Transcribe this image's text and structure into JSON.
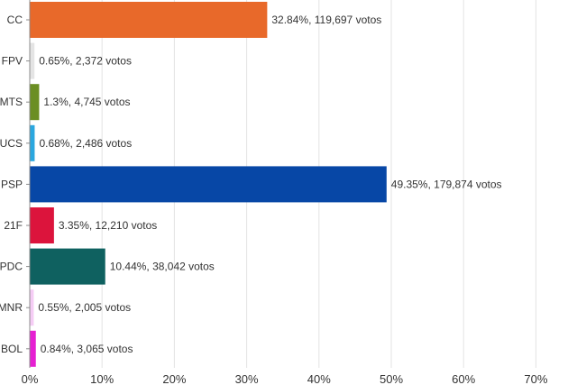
{
  "chart_data": {
    "type": "bar",
    "orientation": "horizontal",
    "categories": [
      "CC",
      "FPV",
      "MTS",
      "UCS",
      "PSP",
      "21F",
      "PDC",
      "MNR",
      "BOL"
    ],
    "values": [
      32.84,
      0.65,
      1.3,
      0.68,
      49.35,
      3.35,
      10.44,
      0.55,
      0.84
    ],
    "value_labels": [
      "32.84%,  119,697 votos",
      "0.65%,  2,372 votos",
      "1.3%,  4,745 votos",
      "0.68%,  2,486 votos",
      "49.35%,  179,874 votos",
      "3.35%,  12,210 votos",
      "10.44%,  38,042 votos",
      "0.55%,  2,005 votos",
      "0.84%,  3,065 votos"
    ],
    "colors": [
      "#E8692A",
      "#E4E4E4",
      "#6B8E23",
      "#2AA7DF",
      "#0747A6",
      "#DC143C",
      "#0F6160",
      "#F5CCF5",
      "#E620D2"
    ],
    "x_ticks": [
      "0%",
      "10%",
      "20%",
      "30%",
      "40%",
      "50%",
      "60%",
      "70%"
    ],
    "xlim": [
      0,
      75
    ],
    "grid": true,
    "title": "",
    "xlabel": "",
    "ylabel": ""
  }
}
